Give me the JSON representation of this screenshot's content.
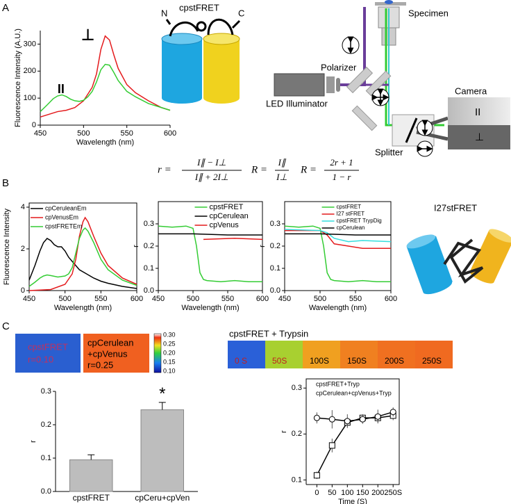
{
  "panels": {
    "letters": [
      "A",
      "B",
      "C"
    ],
    "A": {
      "construct": "cpstFRET",
      "n_term": "N",
      "c_term": "C",
      "specimen": "Specimen",
      "polarizer": "Polarizer",
      "illuminator": "LED Illuminator",
      "camera": "Camera",
      "splitter": "Splitter",
      "parallel": "II",
      "perpendicular": "⊥",
      "formula": [
        "r =",
        "I∥ − I⊥",
        "I∥ + 2I⊥",
        "R =",
        "I∥",
        "I⊥",
        "R =",
        "2r + 1",
        "1 − r"
      ]
    },
    "B": {
      "construct": "I27stFRET"
    },
    "C": {
      "image1": [
        "cpstFRET",
        "r=0.10"
      ],
      "image2": [
        "cpCerulean",
        "+cpVenus",
        "r=0.25"
      ],
      "colorbar": [
        "0.30",
        "0.25",
        "0.20",
        "0.15",
        "0.10"
      ],
      "trypsin_title": "cpstFRET + Trypsin",
      "frames": [
        "0 S",
        "50S",
        "100S",
        "150S",
        "200S",
        "250S"
      ]
    }
  },
  "chart_data": [
    {
      "type": "line",
      "xlabel": "Wavelength (nm)",
      "ylabel": "Fluorescence Intensity (A.U.)",
      "annotations": [
        "II",
        "⊥"
      ],
      "xlim": [
        450,
        600
      ],
      "ylim": [
        0,
        350
      ],
      "xticks": [
        450,
        500,
        550,
        600
      ],
      "yticks": [
        0,
        100,
        200,
        300
      ],
      "series": [
        {
          "color": "#e41a1c",
          "x": [
            450,
            460,
            470,
            480,
            490,
            500,
            510,
            515,
            520,
            525,
            530,
            535,
            540,
            550,
            560,
            575,
            590,
            600
          ],
          "values": [
            30,
            40,
            50,
            55,
            65,
            90,
            140,
            190,
            280,
            330,
            315,
            260,
            210,
            150,
            120,
            90,
            65,
            55
          ]
        },
        {
          "color": "#33cc33",
          "x": [
            450,
            458,
            465,
            470,
            475,
            480,
            485,
            490,
            495,
            500,
            505,
            510,
            515,
            520,
            525,
            530,
            535,
            540,
            550,
            560,
            575,
            590,
            600
          ],
          "values": [
            50,
            75,
            98,
            108,
            112,
            106,
            96,
            90,
            88,
            92,
            105,
            125,
            160,
            205,
            225,
            222,
            195,
            165,
            125,
            105,
            80,
            65,
            55
          ]
        }
      ]
    },
    {
      "type": "line",
      "xlabel": "Wavelength (nm)",
      "ylabel": "Fluorescence Intensity",
      "legend": "upper left",
      "xlim": [
        450,
        600
      ],
      "ylim": [
        0,
        4.2
      ],
      "xticks": [
        450,
        500,
        550,
        600
      ],
      "yticks": [
        0,
        2,
        4
      ],
      "series": [
        {
          "name": "cpCeruleanEm",
          "color": "#000000",
          "x": [
            450,
            458,
            465,
            470,
            475,
            480,
            485,
            490,
            495,
            500,
            505,
            510,
            520,
            530,
            540,
            550,
            560,
            580,
            600
          ],
          "values": [
            0.5,
            1.2,
            1.9,
            2.3,
            2.5,
            2.4,
            2.2,
            2.1,
            2.1,
            1.9,
            1.6,
            1.4,
            1.0,
            0.8,
            0.6,
            0.45,
            0.35,
            0.2,
            0.1
          ]
        },
        {
          "name": "cpVenusEm",
          "color": "#e41a1c",
          "x": [
            450,
            480,
            500,
            510,
            515,
            520,
            525,
            528,
            532,
            540,
            550,
            560,
            580,
            600
          ],
          "values": [
            0,
            0.05,
            0.3,
            0.8,
            1.5,
            2.6,
            3.3,
            3.5,
            3.3,
            2.6,
            1.8,
            1.2,
            0.6,
            0.3
          ]
        },
        {
          "name": "cpstFRETEm",
          "color": "#33cc33",
          "x": [
            450,
            458,
            465,
            470,
            475,
            480,
            490,
            500,
            505,
            510,
            515,
            520,
            525,
            528,
            532,
            540,
            550,
            560,
            580,
            600
          ],
          "values": [
            0.2,
            0.4,
            0.6,
            0.7,
            0.75,
            0.72,
            0.65,
            0.7,
            0.8,
            1.1,
            1.8,
            2.5,
            2.9,
            3.0,
            2.85,
            2.3,
            1.5,
            1.0,
            0.5,
            0.25
          ]
        }
      ]
    },
    {
      "type": "line",
      "xlabel": "Wavelength (nm)",
      "ylabel": "r",
      "legend": "upper right",
      "xlim": [
        450,
        600
      ],
      "ylim": [
        0,
        0.4
      ],
      "xticks": [
        450,
        500,
        550,
        600
      ],
      "yticks": [
        {
          "value": 0,
          "label": "0.0"
        },
        0.1,
        0.2,
        0.3
      ],
      "series": [
        {
          "name": "cpstFRET",
          "color": "#33cc33",
          "x": [
            450,
            470,
            490,
            500,
            505,
            510,
            515,
            520,
            540,
            560,
            580,
            600
          ],
          "values": [
            0.29,
            0.285,
            0.29,
            0.28,
            0.2,
            0.08,
            0.05,
            0.045,
            0.04,
            0.045,
            0.04,
            0.04
          ]
        },
        {
          "name": "cpCerulean",
          "color": "#000000",
          "x": [
            450,
            500,
            550,
            600
          ],
          "values": [
            0.255,
            0.255,
            0.25,
            0.25
          ]
        },
        {
          "name": "cpVenus",
          "color": "#e41a1c",
          "x": [
            515,
            560,
            600
          ],
          "values": [
            0.23,
            0.235,
            0.23
          ]
        }
      ]
    },
    {
      "type": "line",
      "xlabel": "Wavelength (nm)",
      "ylabel": "r",
      "legend": "upper right",
      "xlim": [
        450,
        600
      ],
      "ylim": [
        0,
        0.4
      ],
      "xticks": [
        450,
        500,
        550,
        600
      ],
      "yticks": [
        {
          "value": 0,
          "label": "0.0"
        },
        0.1,
        0.2,
        0.3
      ],
      "series": [
        {
          "name": "cpstFRET",
          "color": "#33cc33",
          "x": [
            450,
            470,
            490,
            500,
            505,
            510,
            515,
            520,
            540,
            560,
            580,
            600
          ],
          "values": [
            0.29,
            0.285,
            0.29,
            0.28,
            0.2,
            0.08,
            0.05,
            0.045,
            0.04,
            0.045,
            0.04,
            0.04
          ]
        },
        {
          "name": "I27 stFRET",
          "color": "#e41a1c",
          "x": [
            450,
            500,
            510,
            520,
            540,
            560,
            600
          ],
          "values": [
            0.27,
            0.27,
            0.25,
            0.21,
            0.2,
            0.19,
            0.19
          ]
        },
        {
          "name": "cpstFRET TrypDig",
          "color": "#33dddd",
          "x": [
            450,
            500,
            510,
            520,
            540,
            560,
            600
          ],
          "values": [
            0.275,
            0.27,
            0.26,
            0.235,
            0.22,
            0.225,
            0.22
          ]
        },
        {
          "name": "cpCerulean",
          "color": "#000000",
          "x": [
            450,
            500,
            550,
            600
          ],
          "values": [
            0.255,
            0.255,
            0.25,
            0.25
          ]
        }
      ]
    },
    {
      "type": "bar",
      "ylabel": "r",
      "annotations": [
        "*"
      ],
      "color": "#bdbdbd",
      "categories": [
        "cpstFRET",
        "cpCeru+cpVen"
      ],
      "values": [
        0.095,
        0.245
      ],
      "errors": [
        0.015,
        0.022
      ],
      "ylim": [
        0,
        0.3
      ],
      "yticks": [
        {
          "value": 0,
          "label": "0.0"
        },
        0.1,
        0.2,
        0.3
      ]
    },
    {
      "type": "line",
      "xlabel": "Time (S)",
      "ylabel": "r",
      "legend": "upper left",
      "x": [
        0,
        50,
        100,
        150,
        200,
        250
      ],
      "xlim": [
        -35,
        270
      ],
      "ylim": [
        0.09,
        0.32
      ],
      "xticks": [
        0,
        50,
        100,
        150,
        200,
        {
          "value": 250,
          "label": "250S"
        }
      ],
      "yticks": [
        0.1,
        0.2,
        0.3
      ],
      "series": [
        {
          "name": "cpstFRET+Tryp",
          "color": "#000000",
          "marker": "square",
          "values": [
            0.11,
            0.175,
            0.225,
            0.235,
            0.235,
            0.24
          ],
          "errors": [
            0.008,
            0.015,
            0.01,
            0.008,
            0.01,
            0.01
          ]
        },
        {
          "name": "cpCerulean+cpVenus+Tryp",
          "color": "#000000",
          "marker": "circle",
          "values": [
            0.235,
            0.232,
            0.228,
            0.232,
            0.238,
            0.248
          ],
          "errors": [
            0.012,
            0.02,
            0.015,
            0.01,
            0.015,
            0.01
          ]
        }
      ]
    }
  ]
}
